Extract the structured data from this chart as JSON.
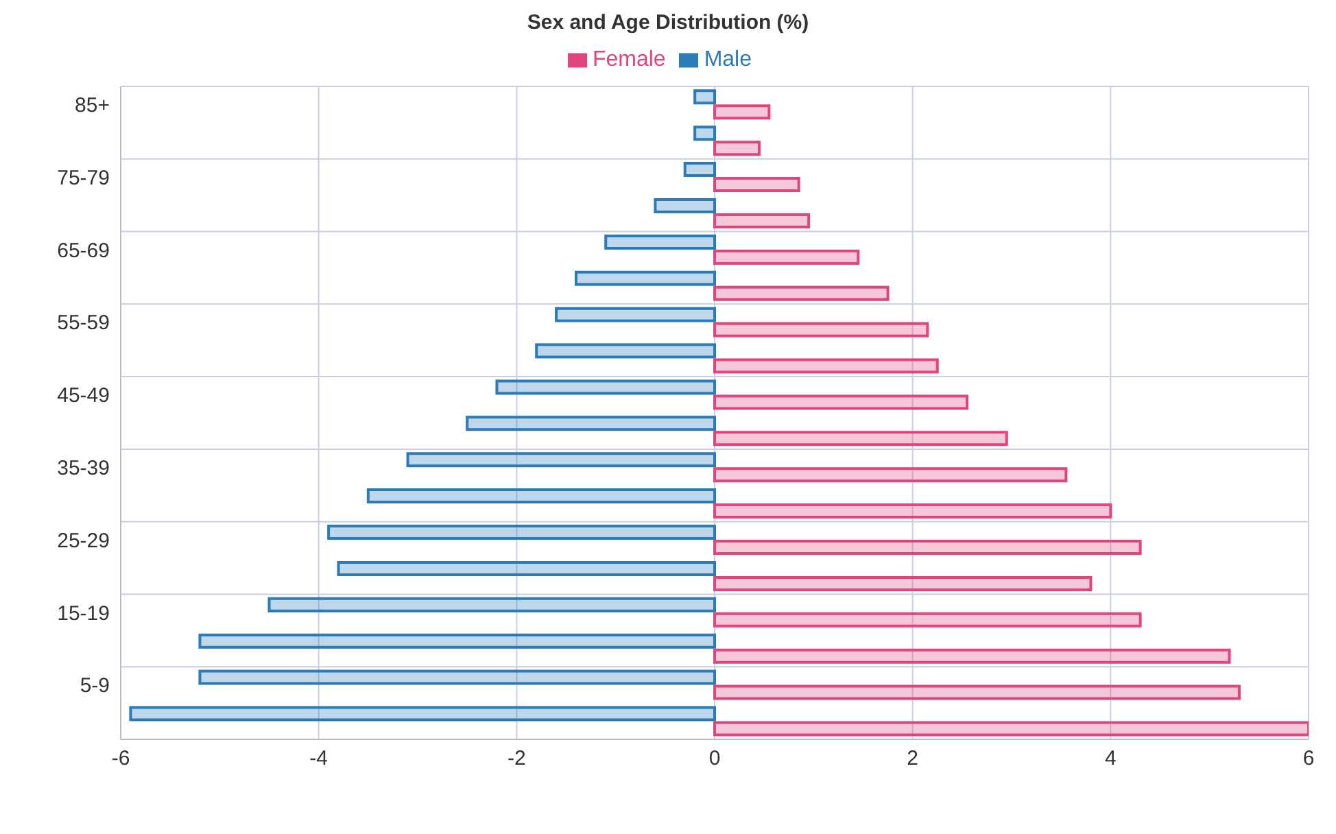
{
  "chart_data": {
    "type": "bar",
    "orientation": "horizontal",
    "title": "Sex and Age Distribution (%)",
    "categories": [
      "85+",
      null,
      "75-79",
      null,
      "65-69",
      null,
      "55-59",
      null,
      "45-49",
      null,
      "35-39",
      null,
      "25-29",
      null,
      "15-19",
      null,
      "5-9",
      null
    ],
    "series": [
      {
        "name": "Male",
        "color": "#2b7bb9",
        "values": [
          -0.2,
          -0.2,
          -0.3,
          -0.6,
          -1.1,
          -1.4,
          -1.6,
          -1.8,
          -2.2,
          -2.5,
          -3.1,
          -3.5,
          -3.9,
          -3.8,
          -4.5,
          -5.2,
          -5.2,
          -5.9
        ]
      },
      {
        "name": "Female",
        "color": "#e0457d",
        "values": [
          0.55,
          0.45,
          0.85,
          0.95,
          1.45,
          1.75,
          2.15,
          2.25,
          2.55,
          2.95,
          3.55,
          4.0,
          4.3,
          3.8,
          4.3,
          5.2,
          5.3,
          6.0
        ]
      }
    ],
    "xlim": [
      -6,
      6
    ],
    "xticks": [
      -6,
      -4,
      -2,
      0,
      2,
      4,
      6
    ],
    "grid": true,
    "legend": "top"
  }
}
